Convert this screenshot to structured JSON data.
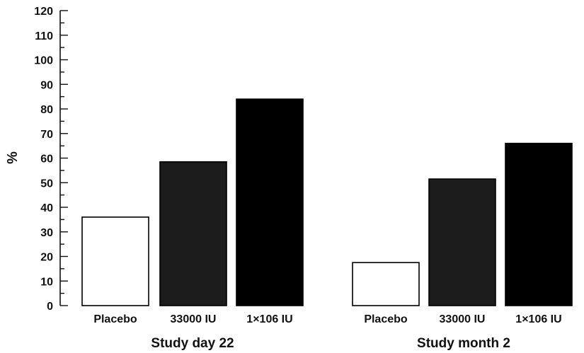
{
  "chart_data": {
    "type": "bar",
    "ylabel": "%",
    "ylim": [
      0,
      120
    ],
    "major_ticks": [
      0,
      10,
      20,
      30,
      40,
      50,
      60,
      70,
      80,
      90,
      100,
      110,
      120
    ],
    "minor_ticks": true,
    "grid": false,
    "groups": [
      {
        "label": "Study day 22",
        "bars": [
          {
            "category": "Placebo",
            "value": 36,
            "fill": "#ffffff"
          },
          {
            "category": "33000 IU",
            "value": 58.5,
            "fill": "#1c1c1c"
          },
          {
            "category": "1×106 IU",
            "value": 84,
            "fill": "#000000"
          }
        ]
      },
      {
        "label": "Study month 2",
        "bars": [
          {
            "category": "Placebo",
            "value": 17.5,
            "fill": "#ffffff"
          },
          {
            "category": "33000 IU",
            "value": 51.5,
            "fill": "#1c1c1c"
          },
          {
            "category": "1×106 IU",
            "value": 66,
            "fill": "#000000"
          }
        ]
      }
    ]
  }
}
